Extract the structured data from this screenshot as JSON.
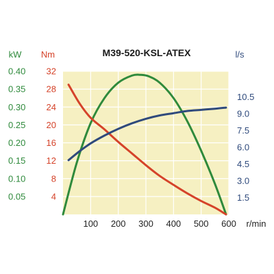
{
  "chart_data": {
    "type": "line",
    "title": "M39-520-KSL-ATEX",
    "x": {
      "unit": "r/min",
      "range": [
        0,
        600
      ],
      "ticks": [
        "100",
        "200",
        "300",
        "400",
        "500",
        "600"
      ]
    },
    "axes": {
      "kw": {
        "unit": "kW",
        "range": [
          0,
          0.4
        ],
        "ticks": [
          "0.05",
          "0.10",
          "0.15",
          "0.20",
          "0.25",
          "0.30",
          "0.35",
          "0.40"
        ],
        "color": "#2f8a3c"
      },
      "nm": {
        "unit": "Nm",
        "range": [
          0,
          32
        ],
        "ticks": [
          "4",
          "8",
          "12",
          "16",
          "20",
          "24",
          "28",
          "32"
        ],
        "color": "#d5432a"
      },
      "ls": {
        "unit": "l/s",
        "range": [
          0,
          12.8
        ],
        "ticks": [
          "1.5",
          "3.0",
          "4.5",
          "6.0",
          "7.5",
          "9.0",
          "10.5"
        ],
        "color": "#2f4a7c"
      }
    },
    "grid": true,
    "background": "#f6f0c2",
    "series": [
      {
        "axis": "kw",
        "color": "#2f8a3c",
        "points": [
          [
            0,
            0.0
          ],
          [
            50,
            0.145
          ],
          [
            100,
            0.255
          ],
          [
            150,
            0.325
          ],
          [
            200,
            0.368
          ],
          [
            250,
            0.388
          ],
          [
            280,
            0.39
          ],
          [
            310,
            0.386
          ],
          [
            350,
            0.368
          ],
          [
            400,
            0.325
          ],
          [
            450,
            0.26
          ],
          [
            500,
            0.178
          ],
          [
            550,
            0.085
          ],
          [
            590,
            0.0
          ]
        ]
      },
      {
        "axis": "nm",
        "color": "#d5432a",
        "points": [
          [
            20,
            29.0
          ],
          [
            60,
            24.8
          ],
          [
            100,
            21.6
          ],
          [
            150,
            19.0
          ],
          [
            200,
            16.2
          ],
          [
            250,
            13.6
          ],
          [
            300,
            11.0
          ],
          [
            350,
            8.6
          ],
          [
            400,
            6.6
          ],
          [
            450,
            4.7
          ],
          [
            500,
            3.0
          ],
          [
            550,
            1.5
          ],
          [
            590,
            0.0
          ]
        ]
      },
      {
        "axis": "ls",
        "color": "#2f4a7c",
        "points": [
          [
            20,
            4.85
          ],
          [
            60,
            5.65
          ],
          [
            100,
            6.35
          ],
          [
            150,
            7.05
          ],
          [
            200,
            7.65
          ],
          [
            250,
            8.15
          ],
          [
            300,
            8.55
          ],
          [
            350,
            8.85
          ],
          [
            400,
            9.05
          ],
          [
            450,
            9.25
          ],
          [
            500,
            9.35
          ],
          [
            550,
            9.45
          ],
          [
            590,
            9.55
          ]
        ]
      }
    ]
  }
}
